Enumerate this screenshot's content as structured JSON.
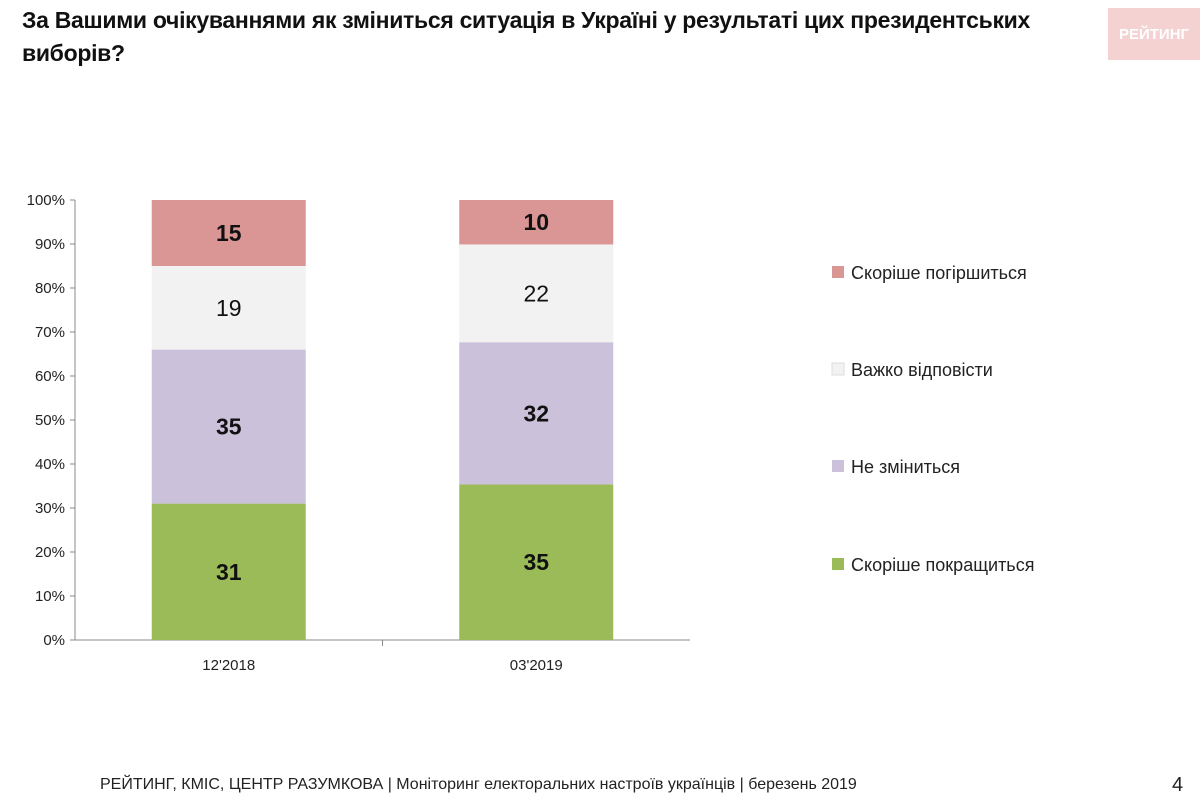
{
  "title": "За Вашими очікуваннями як зміниться ситуація в Україні у результаті цих президентських виборів?",
  "logo": "РЕЙТИНГ",
  "footer": {
    "sources": "РЕЙТИНГ, КМІС, ЦЕНТР РАЗУМКОВА",
    "sep": "|",
    "project": "Моніторинг електоральних настроїв українців",
    "date": "березень 2019",
    "page": "4"
  },
  "chart_data": {
    "type": "bar",
    "stacked": true,
    "percent_stacked": true,
    "categories": [
      "12'2018",
      "03'2019"
    ],
    "series": [
      {
        "name": "Скоріше покращиться",
        "values": [
          31,
          35
        ],
        "color": "#9bbb59"
      },
      {
        "name": "Не зміниться",
        "values": [
          35,
          32
        ],
        "color": "#ccc1da"
      },
      {
        "name": "Важко відповісти",
        "values": [
          19,
          22
        ],
        "color": "#f2f2f2"
      },
      {
        "name": "Скоріше погіршиться",
        "values": [
          15,
          10
        ],
        "color": "#d99694"
      }
    ],
    "yticks": [
      "0%",
      "10%",
      "20%",
      "30%",
      "40%",
      "50%",
      "60%",
      "70%",
      "80%",
      "90%",
      "100%"
    ],
    "ylim": [
      0,
      100
    ],
    "legend": "right",
    "grid": false
  }
}
